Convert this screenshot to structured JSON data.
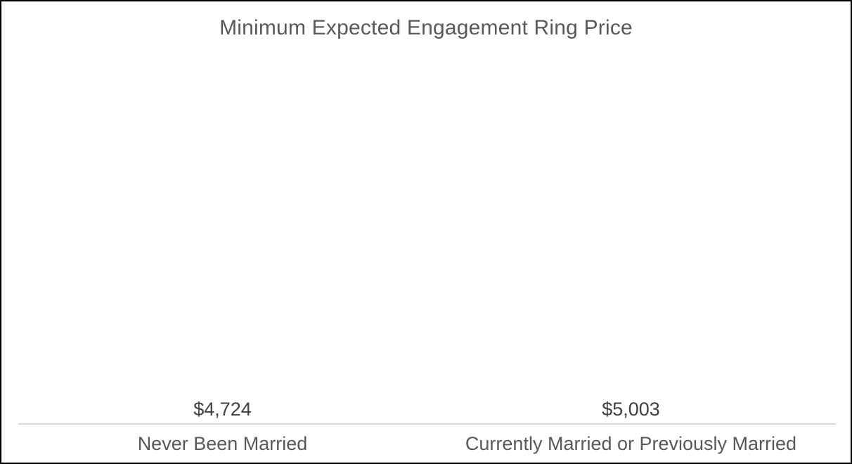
{
  "window": {
    "background": "#ffffff",
    "frame_border_color": "#000000"
  },
  "chart_data": {
    "type": "bar",
    "title": "Minimum Expected Engagement Ring Price",
    "categories": [
      "Never Been Married",
      "Currently Married or Previously Married"
    ],
    "values": [
      4724,
      5003
    ],
    "data_labels": [
      "$4,724",
      "$5,003"
    ],
    "xlabel": "",
    "ylabel": "",
    "ylim": [
      0,
      6000
    ],
    "grid": false,
    "legend": false,
    "y_axis_visible": false,
    "bar_color": "#1f4e79",
    "axis_line_color": "#d9d9d9",
    "title_color": "#595959",
    "data_label_color": "#404040",
    "category_label_color": "#595959"
  }
}
